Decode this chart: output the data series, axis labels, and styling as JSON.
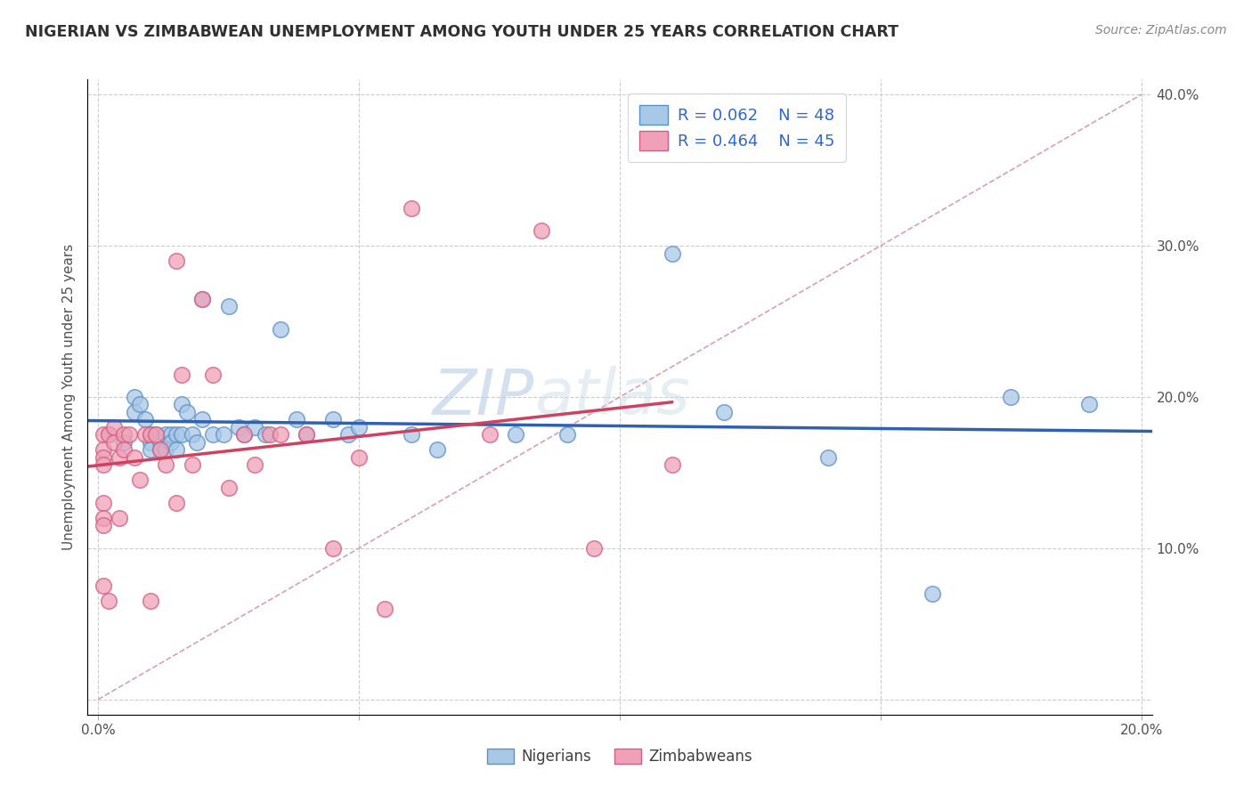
{
  "title": "NIGERIAN VS ZIMBABWEAN UNEMPLOYMENT AMONG YOUTH UNDER 25 YEARS CORRELATION CHART",
  "source": "Source: ZipAtlas.com",
  "ylabel": "Unemployment Among Youth under 25 years",
  "xlim": [
    -0.002,
    0.202
  ],
  "ylim": [
    -0.01,
    0.41
  ],
  "xticks": [
    0.0,
    0.05,
    0.1,
    0.15,
    0.2
  ],
  "yticks": [
    0.0,
    0.1,
    0.2,
    0.3,
    0.4
  ],
  "xticklabels": [
    "0.0%",
    "",
    "",
    "",
    "20.0%"
  ],
  "yticklabels_left": [
    "",
    "",
    "",
    "",
    ""
  ],
  "yticklabels_right": [
    "",
    "10.0%",
    "20.0%",
    "30.0%",
    "40.0%"
  ],
  "legend_r": [
    "R = 0.062",
    "R = 0.464"
  ],
  "legend_n": [
    "N = 48",
    "N = 45"
  ],
  "blue_color": "#a8c8e8",
  "pink_color": "#f0a0b8",
  "blue_edge_color": "#6090c0",
  "pink_edge_color": "#d06080",
  "blue_line_color": "#3060b0",
  "pink_line_color": "#d04060",
  "diagonal_color": "#d8a0b0",
  "title_color": "#303030",
  "legend_text_color": "#3366cc",
  "watermark": "ZIPatlas",
  "bg_color": "#ffffff",
  "grid_color": "#cccccc",
  "nigerians_x": [
    0.002,
    0.005,
    0.007,
    0.007,
    0.008,
    0.009,
    0.01,
    0.01,
    0.01,
    0.011,
    0.012,
    0.012,
    0.013,
    0.013,
    0.014,
    0.014,
    0.015,
    0.015,
    0.016,
    0.016,
    0.017,
    0.018,
    0.019,
    0.02,
    0.02,
    0.022,
    0.024,
    0.025,
    0.027,
    0.028,
    0.03,
    0.032,
    0.035,
    0.038,
    0.04,
    0.045,
    0.048,
    0.05,
    0.06,
    0.065,
    0.08,
    0.09,
    0.11,
    0.12,
    0.14,
    0.16,
    0.175,
    0.19
  ],
  "nigerians_y": [
    0.175,
    0.17,
    0.2,
    0.19,
    0.195,
    0.185,
    0.175,
    0.17,
    0.165,
    0.175,
    0.17,
    0.165,
    0.175,
    0.165,
    0.175,
    0.17,
    0.175,
    0.165,
    0.195,
    0.175,
    0.19,
    0.175,
    0.17,
    0.185,
    0.265,
    0.175,
    0.175,
    0.26,
    0.18,
    0.175,
    0.18,
    0.175,
    0.245,
    0.185,
    0.175,
    0.185,
    0.175,
    0.18,
    0.175,
    0.165,
    0.175,
    0.175,
    0.295,
    0.19,
    0.16,
    0.07,
    0.2,
    0.195
  ],
  "zimbabweans_x": [
    0.001,
    0.001,
    0.001,
    0.001,
    0.001,
    0.001,
    0.001,
    0.001,
    0.002,
    0.002,
    0.003,
    0.003,
    0.004,
    0.004,
    0.005,
    0.005,
    0.006,
    0.007,
    0.008,
    0.009,
    0.01,
    0.01,
    0.011,
    0.012,
    0.013,
    0.015,
    0.015,
    0.016,
    0.018,
    0.02,
    0.022,
    0.025,
    0.028,
    0.03,
    0.033,
    0.035,
    0.04,
    0.045,
    0.05,
    0.055,
    0.06,
    0.075,
    0.085,
    0.095,
    0.11
  ],
  "zimbabweans_y": [
    0.175,
    0.165,
    0.16,
    0.155,
    0.13,
    0.12,
    0.115,
    0.075,
    0.175,
    0.065,
    0.18,
    0.17,
    0.16,
    0.12,
    0.175,
    0.165,
    0.175,
    0.16,
    0.145,
    0.175,
    0.175,
    0.065,
    0.175,
    0.165,
    0.155,
    0.29,
    0.13,
    0.215,
    0.155,
    0.265,
    0.215,
    0.14,
    0.175,
    0.155,
    0.175,
    0.175,
    0.175,
    0.1,
    0.16,
    0.06,
    0.325,
    0.175,
    0.31,
    0.1,
    0.155
  ]
}
